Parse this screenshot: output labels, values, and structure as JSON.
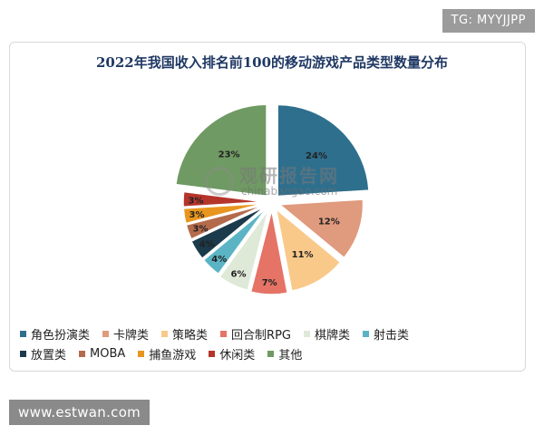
{
  "watermark_top": "TG: MYYJJPP",
  "watermark_bottom": "www.estwan.com",
  "logo": {
    "name": "观研报告网",
    "domain": "chinabaogao.com"
  },
  "chart_data": {
    "type": "pie",
    "title": "2022年我国收入排名前100的移动游戏产品类型数量分布",
    "unit": "%",
    "categories": [
      "角色扮演类",
      "卡牌类",
      "策略类",
      "回合制RPG",
      "棋牌类",
      "射击类",
      "放置类",
      "MOBA",
      "捕鱼游戏",
      "休闲类",
      "其他"
    ],
    "values": [
      24,
      12,
      11,
      7,
      6,
      4,
      4,
      3,
      3,
      3,
      23
    ],
    "labels": [
      "24%",
      "12%",
      "11%",
      "7%",
      "6%",
      "4%",
      "4%",
      "3%",
      "3%",
      "3%",
      "23%"
    ],
    "colors": [
      "#2e6f8e",
      "#e09a7d",
      "#f9c98a",
      "#e57366",
      "#dfe9d8",
      "#5bb4c4",
      "#1b3a4b",
      "#b46b4c",
      "#e8961e",
      "#b5352b",
      "#6f9a63"
    ],
    "legend_position": "bottom"
  }
}
